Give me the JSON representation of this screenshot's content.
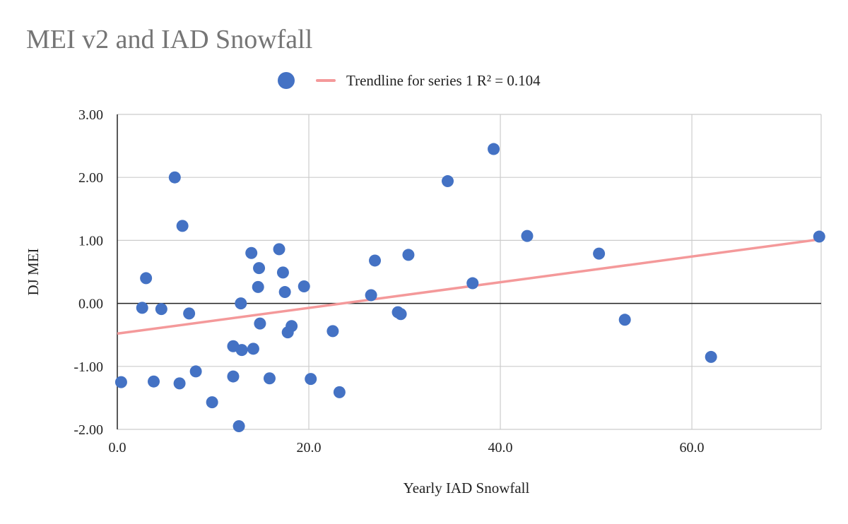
{
  "chart_data": {
    "type": "scatter",
    "title": "MEI v2 and IAD Snowfall",
    "xlabel": "Yearly IAD Snowfall",
    "ylabel": "DJ MEI",
    "xlim": [
      0,
      73.5
    ],
    "ylim": [
      -2,
      3
    ],
    "x_ticks": [
      "0.0",
      "20.0",
      "40.0",
      "60.0"
    ],
    "y_ticks": [
      "3.00",
      "2.00",
      "1.00",
      "0.00",
      "-1.00",
      "-2.00"
    ],
    "grid": true,
    "legend_position": "top",
    "series": [
      {
        "color": "#4472c4",
        "points": [
          [
            0.4,
            -1.25
          ],
          [
            2.6,
            -0.07
          ],
          [
            3.0,
            0.4
          ],
          [
            3.8,
            -1.24
          ],
          [
            4.6,
            -0.09
          ],
          [
            6.0,
            2.0
          ],
          [
            6.5,
            -1.27
          ],
          [
            6.8,
            1.23
          ],
          [
            7.5,
            -0.16
          ],
          [
            8.2,
            -1.08
          ],
          [
            9.9,
            -1.57
          ],
          [
            12.1,
            -0.68
          ],
          [
            12.1,
            -1.16
          ],
          [
            12.7,
            -1.95
          ],
          [
            12.9,
            0.0
          ],
          [
            13.0,
            -0.74
          ],
          [
            14.0,
            0.8
          ],
          [
            14.2,
            -0.72
          ],
          [
            14.7,
            0.26
          ],
          [
            14.8,
            0.56
          ],
          [
            14.9,
            -0.32
          ],
          [
            15.9,
            -1.19
          ],
          [
            16.9,
            0.86
          ],
          [
            17.3,
            0.49
          ],
          [
            17.5,
            0.18
          ],
          [
            17.8,
            -0.46
          ],
          [
            18.2,
            -0.36
          ],
          [
            19.5,
            0.27
          ],
          [
            20.2,
            -1.2
          ],
          [
            22.5,
            -0.44
          ],
          [
            23.2,
            -1.41
          ],
          [
            26.5,
            0.13
          ],
          [
            26.9,
            0.68
          ],
          [
            29.3,
            -0.14
          ],
          [
            29.6,
            -0.17
          ],
          [
            30.4,
            0.77
          ],
          [
            34.5,
            1.94
          ],
          [
            37.1,
            0.32
          ],
          [
            39.3,
            2.45
          ],
          [
            42.8,
            1.07
          ],
          [
            50.3,
            0.79
          ],
          [
            53.0,
            -0.26
          ],
          [
            62.0,
            -0.85
          ],
          [
            73.3,
            1.06
          ]
        ]
      }
    ],
    "trendline": {
      "label": "Trendline for series 1 R² = 0.104",
      "color": "#f4999a",
      "intercept": -0.48,
      "slope": 0.0204
    }
  }
}
